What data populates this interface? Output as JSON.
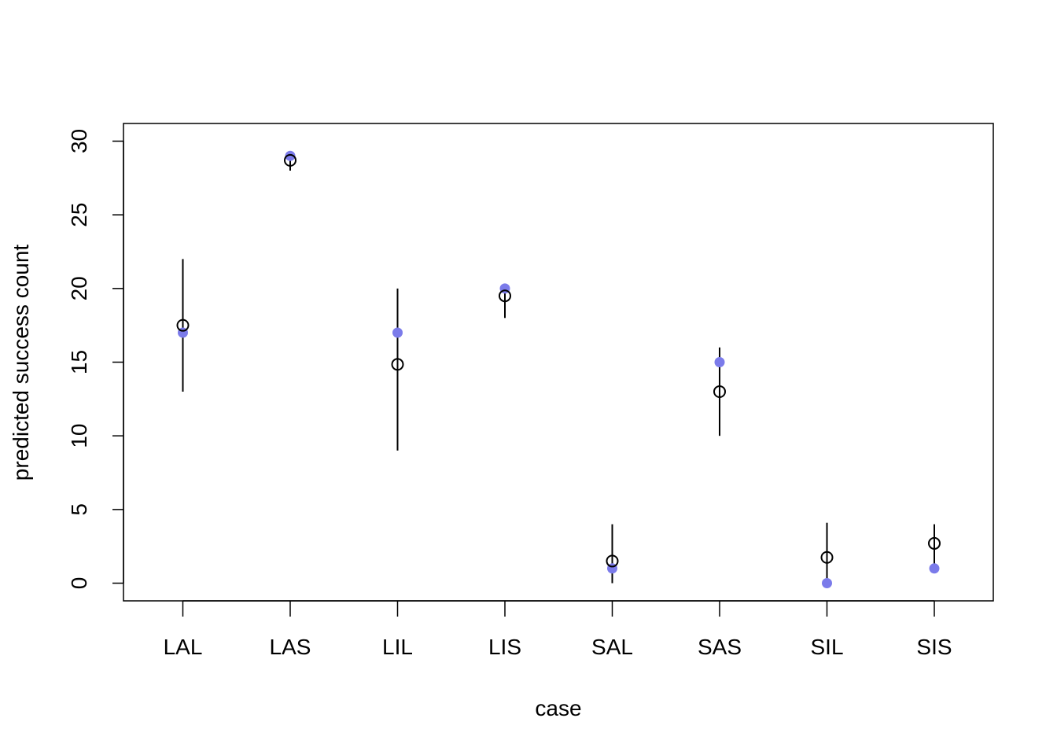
{
  "chart_data": {
    "type": "scatter",
    "title": "",
    "xlabel": "case",
    "ylabel": "predicted success count",
    "categories": [
      "LAL",
      "LAS",
      "LIL",
      "LIS",
      "SAL",
      "SAS",
      "SIL",
      "SIS"
    ],
    "ylim": [
      -1.2,
      31.2
    ],
    "yticks": [
      "0",
      "5",
      "10",
      "15",
      "20",
      "25",
      "30"
    ],
    "grid": false,
    "legend": "none",
    "series": [
      {
        "role": "observed",
        "marker": "filled-circle",
        "color": "#7b7bea",
        "values": [
          17,
          29,
          17,
          20,
          1,
          15,
          0,
          1
        ]
      },
      {
        "role": "predicted-mean",
        "marker": "open-circle",
        "color": "#000000",
        "values": [
          17.5,
          28.7,
          14.85,
          19.5,
          1.5,
          13.0,
          1.75,
          2.7
        ]
      }
    ],
    "intervals": {
      "color": "#000000",
      "low": [
        13,
        28,
        9,
        18,
        0,
        10,
        0,
        1
      ],
      "high": [
        22,
        29,
        20,
        20,
        4,
        16,
        4.1,
        4
      ]
    }
  }
}
